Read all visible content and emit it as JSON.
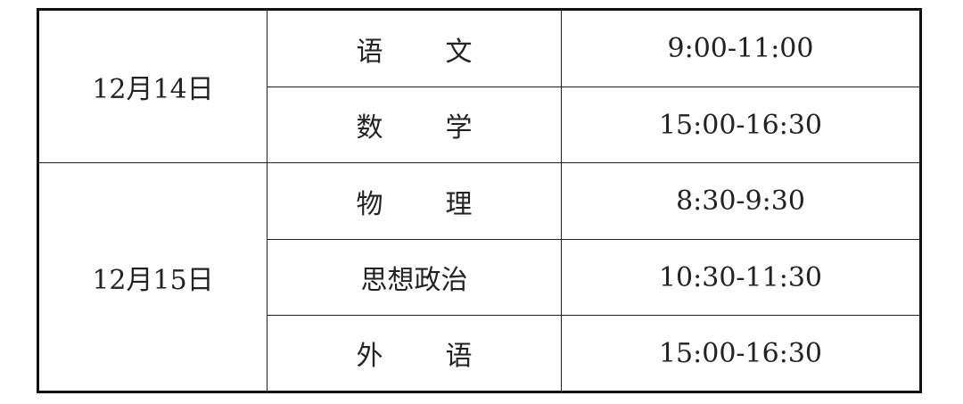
{
  "rows": [
    {
      "date": "12月14日",
      "subjects": [
        {
          "chars": [
            "语",
            "文"
          ],
          "time": "9:00-11:00"
        },
        {
          "chars": [
            "数",
            "学"
          ],
          "time": "15:00-16:30"
        }
      ]
    },
    {
      "date": "12月15日",
      "subjects": [
        {
          "chars": [
            "物",
            "理"
          ],
          "time": "8:30-9:30"
        },
        {
          "chars": [
            "思想政治"
          ],
          "time": "10:30-11:30"
        },
        {
          "chars": [
            "外",
            "语"
          ],
          "time": "15:00-16:30"
        }
      ]
    }
  ]
}
